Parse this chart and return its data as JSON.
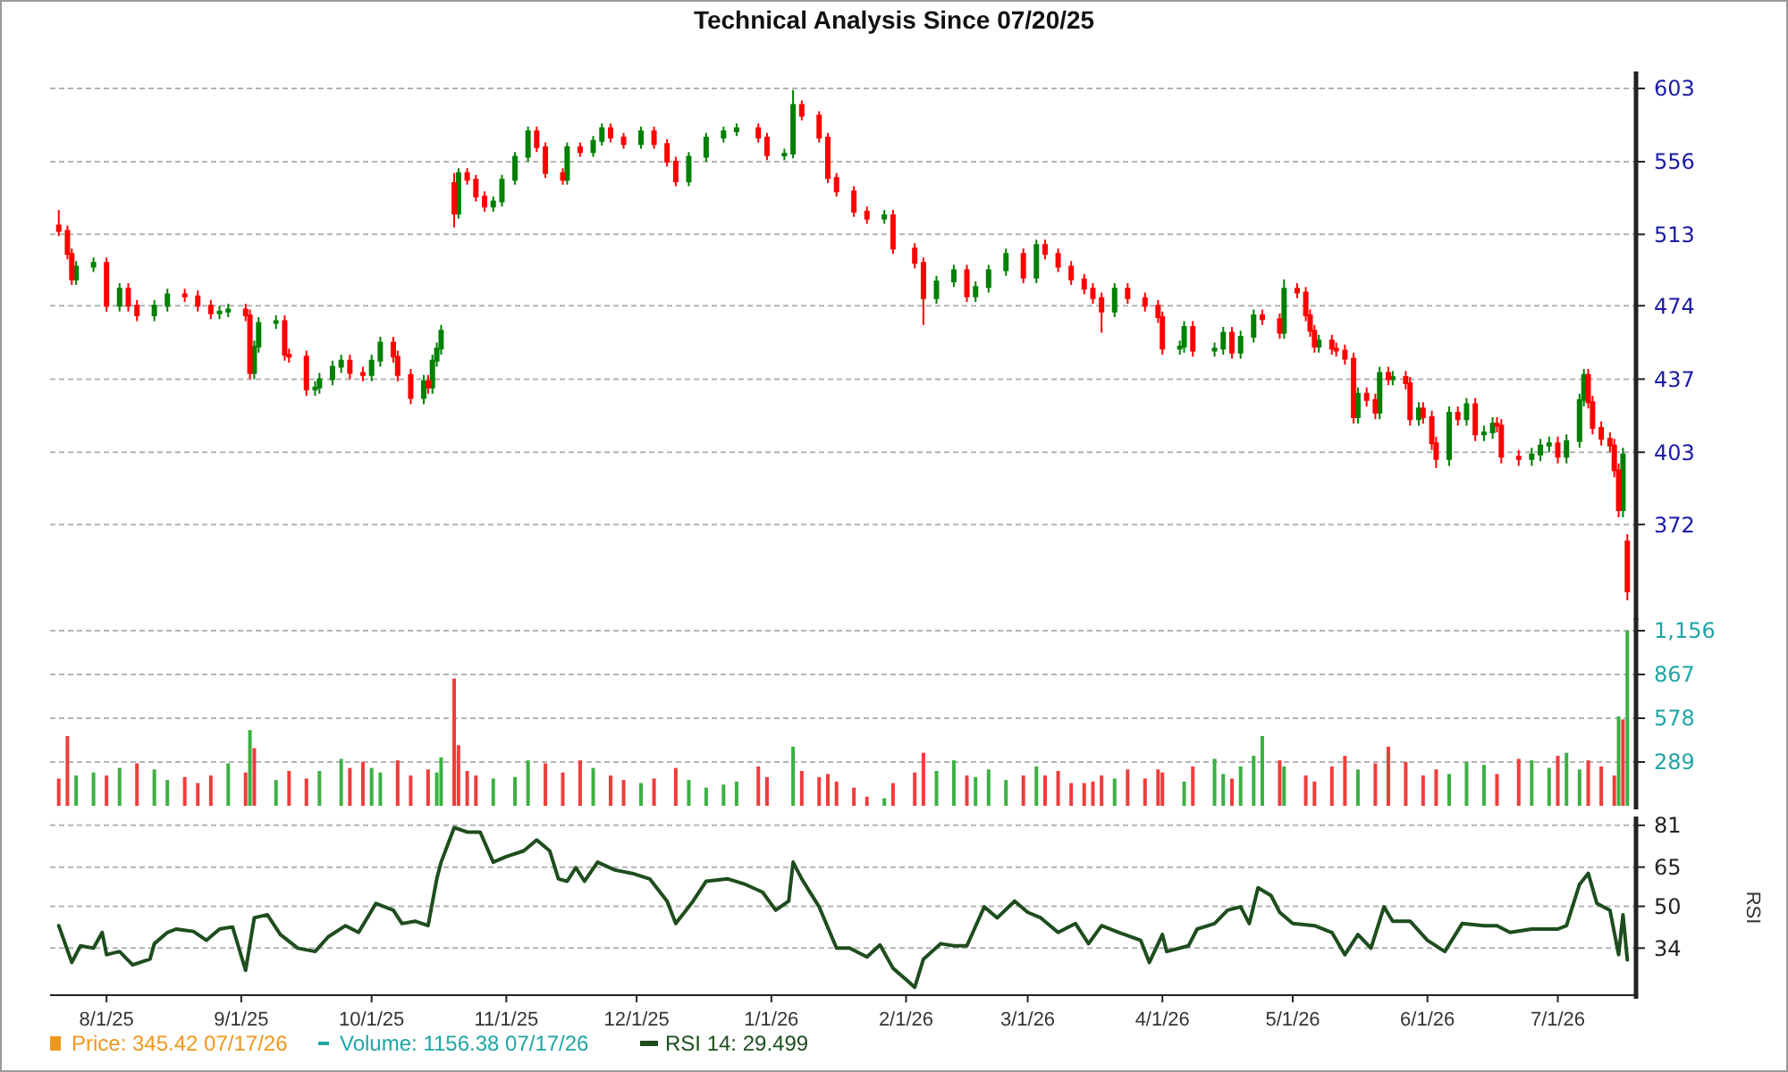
{
  "chart_data": [
    {
      "type": "candlestick",
      "title": "Technical Analysis Since 07/20/25",
      "log": true,
      "grid": "y",
      "tick_labels": "y",
      "legend": false,
      "xlim": [
        "2025-07-19",
        "2026-07-19"
      ],
      "ylim": [
        336,
        612
      ],
      "yticks": [
        372,
        403,
        437,
        474,
        513,
        556,
        603
      ],
      "annotations": [
        "Price: 345.42 07/17/26"
      ],
      "series": [
        {
          "color": "#008000",
          "x": [
            "2025-07-25",
            "2025-07-29",
            "2025-08-04",
            "2025-08-12",
            "2025-08-15",
            "2025-08-27",
            "2025-08-29",
            "2025-09-04",
            "2025-09-05",
            "2025-09-09",
            "2025-09-18",
            "2025-09-19",
            "2025-09-22",
            "2025-09-24",
            "2025-10-01",
            "2025-10-03",
            "2025-10-13",
            "2025-10-15",
            "2025-10-16",
            "2025-10-17",
            "2025-10-21",
            "2025-10-29",
            "2025-10-31",
            "2025-11-03",
            "2025-11-06",
            "2025-11-15",
            "2025-11-21",
            "2025-11-23",
            "2025-12-02",
            "2025-12-13",
            "2025-12-17",
            "2025-12-21",
            "2025-12-24",
            "2026-01-04",
            "2026-01-06",
            "2026-01-27",
            "2026-02-08",
            "2026-02-12",
            "2026-02-17",
            "2026-02-20",
            "2026-02-24",
            "2026-03-03",
            "2026-03-21",
            "2026-04-05",
            "2026-04-06",
            "2026-04-13",
            "2026-04-15",
            "2026-04-19",
            "2026-04-22",
            "2026-04-29",
            "2026-05-07",
            "2026-05-16",
            "2026-05-21",
            "2026-05-24",
            "2026-05-30",
            "2026-06-06",
            "2026-06-10",
            "2026-06-14",
            "2026-06-16",
            "2026-06-25",
            "2026-06-27",
            "2026-06-29",
            "2026-07-03",
            "2026-07-06",
            "2026-07-07",
            "2026-07-16"
          ],
          "ohlc": [
            [
              488,
              498,
              485,
              495
            ],
            [
              495,
              500,
              492,
              497
            ],
            [
              474,
              486,
              471,
              483
            ],
            [
              469,
              477,
              466,
              474
            ],
            [
              474,
              483,
              471,
              480
            ],
            [
              470,
              474,
              467,
              471
            ],
            [
              471,
              475,
              468,
              472
            ],
            [
              440,
              456,
              437,
              453
            ],
            [
              453,
              468,
              450,
              465
            ],
            [
              465,
              469,
              462,
              466
            ],
            [
              432,
              436,
              429,
              433
            ],
            [
              433,
              440,
              430,
              437
            ],
            [
              437,
              446,
              434,
              443
            ],
            [
              443,
              449,
              440,
              446
            ],
            [
              439,
              449,
              436,
              446
            ],
            [
              446,
              458,
              443,
              455
            ],
            [
              428,
              439,
              425,
              436
            ],
            [
              433,
              449,
              430,
              446
            ],
            [
              446,
              455,
              443,
              452
            ],
            [
              452,
              464,
              449,
              461
            ],
            [
              525,
              552,
              522,
              549
            ],
            [
              529,
              535,
              526,
              532
            ],
            [
              532,
              548,
              529,
              545
            ],
            [
              545,
              562,
              542,
              559
            ],
            [
              559,
              578,
              556,
              575
            ],
            [
              545,
              568,
              542,
              565
            ],
            [
              562,
              572,
              559,
              569
            ],
            [
              569,
              580,
              566,
              577
            ],
            [
              567,
              578,
              564,
              575
            ],
            [
              544,
              562,
              541,
              559
            ],
            [
              559,
              574,
              556,
              571
            ],
            [
              571,
              578,
              568,
              575
            ],
            [
              575,
              580,
              572,
              577
            ],
            [
              560,
              564,
              557,
              561
            ],
            [
              561,
              602,
              558,
              592
            ],
            [
              522,
              527,
              519,
              524
            ],
            [
              478,
              490,
              475,
              487
            ],
            [
              487,
              496,
              484,
              493
            ],
            [
              479,
              487,
              476,
              484
            ],
            [
              484,
              496,
              481,
              493
            ],
            [
              493,
              505,
              490,
              502
            ],
            [
              489,
              510,
              486,
              507
            ],
            [
              471,
              486,
              468,
              483
            ],
            [
              452,
              456,
              449,
              453
            ],
            [
              453,
              466,
              450,
              463
            ],
            [
              451,
              455,
              448,
              452
            ],
            [
              452,
              463,
              449,
              460
            ],
            [
              450,
              461,
              447,
              458
            ],
            [
              458,
              472,
              455,
              469
            ],
            [
              460,
              488,
              457,
              483
            ],
            [
              453,
              459,
              450,
              456
            ],
            [
              419,
              433,
              416,
              430
            ],
            [
              421,
              443,
              418,
              440
            ],
            [
              437,
              441,
              434,
              438
            ],
            [
              418,
              426,
              415,
              423
            ],
            [
              400,
              424,
              397,
              421
            ],
            [
              418,
              428,
              415,
              425
            ],
            [
              411,
              415,
              408,
              412
            ],
            [
              412,
              419,
              409,
              416
            ],
            [
              400,
              405,
              397,
              402
            ],
            [
              402,
              409,
              399,
              406
            ],
            [
              406,
              410,
              403,
              407
            ],
            [
              401,
              411,
              398,
              408
            ],
            [
              408,
              430,
              405,
              427
            ],
            [
              427,
              442,
              424,
              439
            ],
            [
              378,
              405,
              375,
              402
            ]
          ]
        },
        {
          "color": "#ff0000",
          "x": [
            "2025-07-21",
            "2025-07-23",
            "2025-07-24",
            "2025-08-01",
            "2025-08-06",
            "2025-08-08",
            "2025-08-19",
            "2025-08-22",
            "2025-08-25",
            "2025-09-02",
            "2025-09-03",
            "2025-09-11",
            "2025-09-12",
            "2025-09-16",
            "2025-09-26",
            "2025-09-29",
            "2025-10-06",
            "2025-10-07",
            "2025-10-10",
            "2025-10-14",
            "2025-10-20",
            "2025-10-23",
            "2025-10-25",
            "2025-10-27",
            "2025-11-08",
            "2025-11-10",
            "2025-11-14",
            "2025-11-18",
            "2025-11-25",
            "2025-11-28",
            "2025-12-05",
            "2025-12-08",
            "2025-12-10",
            "2025-12-29",
            "2025-12-31",
            "2026-01-08",
            "2026-01-12",
            "2026-01-14",
            "2026-01-16",
            "2026-01-20",
            "2026-01-23",
            "2026-01-29",
            "2026-02-03",
            "2026-02-05",
            "2026-02-15",
            "2026-02-28",
            "2026-03-05",
            "2026-03-08",
            "2026-03-11",
            "2026-03-14",
            "2026-03-16",
            "2026-03-18",
            "2026-03-24",
            "2026-03-28",
            "2026-03-31",
            "2026-04-01",
            "2026-04-08",
            "2026-04-17",
            "2026-04-24",
            "2026-04-28",
            "2026-05-02",
            "2026-05-04",
            "2026-05-05",
            "2026-05-06",
            "2026-05-10",
            "2026-05-11",
            "2026-05-13",
            "2026-05-15",
            "2026-05-18",
            "2026-05-20",
            "2026-05-23",
            "2026-05-27",
            "2026-05-28",
            "2026-05-31",
            "2026-06-02",
            "2026-06-03",
            "2026-06-08",
            "2026-06-12",
            "2026-06-17",
            "2026-06-18",
            "2026-06-22",
            "2026-07-01",
            "2026-07-08",
            "2026-07-09",
            "2026-07-11",
            "2026-07-13",
            "2026-07-14",
            "2026-07-15",
            "2026-07-17"
          ],
          "ohlc": [
            [
              518,
              527,
              512,
              515
            ],
            [
              515,
              518,
              499,
              502
            ],
            [
              502,
              505,
              485,
              488
            ],
            [
              497,
              500,
              471,
              474
            ],
            [
              483,
              486,
              471,
              474
            ],
            [
              474,
              477,
              466,
              469
            ],
            [
              480,
              483,
              476,
              479
            ],
            [
              479,
              482,
              471,
              474
            ],
            [
              474,
              477,
              467,
              470
            ],
            [
              472,
              475,
              466,
              469
            ],
            [
              469,
              472,
              437,
              440
            ],
            [
              466,
              469,
              446,
              449
            ],
            [
              449,
              452,
              445,
              448
            ],
            [
              448,
              451,
              429,
              432
            ],
            [
              446,
              449,
              437,
              440
            ],
            [
              440,
              443,
              436,
              439
            ],
            [
              455,
              458,
              445,
              448
            ],
            [
              448,
              451,
              436,
              439
            ],
            [
              439,
              442,
              425,
              428
            ],
            [
              436,
              439,
              430,
              433
            ],
            [
              543,
              549,
              517,
              525
            ],
            [
              549,
              552,
              542,
              545
            ],
            [
              545,
              548,
              532,
              535
            ],
            [
              535,
              538,
              526,
              529
            ],
            [
              575,
              578,
              562,
              565
            ],
            [
              565,
              568,
              546,
              549
            ],
            [
              549,
              552,
              542,
              545
            ],
            [
              565,
              568,
              559,
              562
            ],
            [
              577,
              580,
              568,
              571
            ],
            [
              571,
              574,
              564,
              567
            ],
            [
              575,
              578,
              564,
              567
            ],
            [
              567,
              570,
              553,
              556
            ],
            [
              556,
              559,
              541,
              544
            ],
            [
              577,
              580,
              568,
              571
            ],
            [
              571,
              574,
              557,
              560
            ],
            [
              592,
              595,
              582,
              585
            ],
            [
              585,
              588,
              568,
              571
            ],
            [
              571,
              574,
              543,
              546
            ],
            [
              546,
              549,
              535,
              538
            ],
            [
              538,
              541,
              523,
              526
            ],
            [
              526,
              529,
              519,
              522
            ],
            [
              524,
              527,
              502,
              505
            ],
            [
              505,
              508,
              494,
              497
            ],
            [
              497,
              500,
              464,
              478
            ],
            [
              493,
              496,
              476,
              479
            ],
            [
              502,
              505,
              486,
              489
            ],
            [
              507,
              510,
              499,
              502
            ],
            [
              502,
              505,
              492,
              495
            ],
            [
              495,
              498,
              485,
              488
            ],
            [
              488,
              491,
              480,
              483
            ],
            [
              483,
              486,
              475,
              478
            ],
            [
              478,
              481,
              460,
              471
            ],
            [
              483,
              486,
              475,
              478
            ],
            [
              478,
              481,
              471,
              474
            ],
            [
              474,
              477,
              465,
              468
            ],
            [
              468,
              471,
              449,
              452
            ],
            [
              463,
              466,
              448,
              451
            ],
            [
              460,
              463,
              447,
              450
            ],
            [
              469,
              472,
              464,
              467
            ],
            [
              467,
              470,
              457,
              460
            ],
            [
              483,
              486,
              478,
              481
            ],
            [
              481,
              484,
              466,
              469
            ],
            [
              469,
              472,
              458,
              461
            ],
            [
              461,
              464,
              450,
              453
            ],
            [
              456,
              459,
              449,
              452
            ],
            [
              452,
              455,
              448,
              451
            ],
            [
              451,
              454,
              444,
              447
            ],
            [
              447,
              450,
              416,
              419
            ],
            [
              430,
              433,
              424,
              427
            ],
            [
              427,
              430,
              418,
              421
            ],
            [
              440,
              443,
              434,
              437
            ],
            [
              438,
              441,
              432,
              435
            ],
            [
              435,
              438,
              415,
              418
            ],
            [
              423,
              426,
              416,
              419
            ],
            [
              419,
              422,
              404,
              407
            ],
            [
              407,
              410,
              396,
              400
            ],
            [
              421,
              424,
              415,
              418
            ],
            [
              425,
              428,
              408,
              411
            ],
            [
              416,
              419,
              412,
              415
            ],
            [
              415,
              418,
              398,
              401
            ],
            [
              401,
              404,
              397,
              400
            ],
            [
              407,
              410,
              398,
              401
            ],
            [
              439,
              442,
              423,
              426
            ],
            [
              426,
              429,
              411,
              414
            ],
            [
              414,
              417,
              406,
              409
            ],
            [
              409,
              412,
              403,
              406
            ],
            [
              406,
              409,
              392,
              395
            ],
            [
              395,
              398,
              375,
              378
            ],
            [
              365,
              368,
              342,
              345.42
            ]
          ]
        }
      ]
    },
    {
      "type": "bar",
      "grid": "y",
      "tick_labels": "y",
      "legend": false,
      "xlim": [
        "2025-07-19",
        "2026-07-19"
      ],
      "ylim": [
        0,
        1215
      ],
      "yticks": [
        289,
        578,
        867,
        {
          "value": 1156,
          "label": "1,156"
        }
      ],
      "annotations": [
        "Volume: 1156.38 07/17/26"
      ],
      "x": [
        "2025-07-21",
        "2025-07-23",
        "2025-07-25",
        "2025-07-29",
        "2025-08-01",
        "2025-08-04",
        "2025-08-08",
        "2025-08-12",
        "2025-08-15",
        "2025-08-19",
        "2025-08-22",
        "2025-08-25",
        "2025-08-29",
        "2025-09-02",
        "2025-09-03",
        "2025-09-04",
        "2025-09-09",
        "2025-09-12",
        "2025-09-16",
        "2025-09-19",
        "2025-09-24",
        "2025-09-26",
        "2025-09-29",
        "2025-10-01",
        "2025-10-03",
        "2025-10-07",
        "2025-10-10",
        "2025-10-14",
        "2025-10-16",
        "2025-10-17",
        "2025-10-20",
        "2025-10-21",
        "2025-10-23",
        "2025-10-25",
        "2025-10-29",
        "2025-11-03",
        "2025-11-06",
        "2025-11-10",
        "2025-11-14",
        "2025-11-18",
        "2025-11-21",
        "2025-11-25",
        "2025-11-28",
        "2025-12-02",
        "2025-12-05",
        "2025-12-10",
        "2025-12-13",
        "2025-12-17",
        "2025-12-21",
        "2025-12-24",
        "2025-12-29",
        "2025-12-31",
        "2026-01-06",
        "2026-01-08",
        "2026-01-12",
        "2026-01-14",
        "2026-01-16",
        "2026-01-20",
        "2026-01-23",
        "2026-01-27",
        "2026-01-29",
        "2026-02-03",
        "2026-02-05",
        "2026-02-08",
        "2026-02-12",
        "2026-02-15",
        "2026-02-17",
        "2026-02-20",
        "2026-02-24",
        "2026-02-28",
        "2026-03-03",
        "2026-03-05",
        "2026-03-08",
        "2026-03-11",
        "2026-03-14",
        "2026-03-16",
        "2026-03-18",
        "2026-03-21",
        "2026-03-24",
        "2026-03-28",
        "2026-03-31",
        "2026-04-01",
        "2026-04-06",
        "2026-04-08",
        "2026-04-13",
        "2026-04-15",
        "2026-04-17",
        "2026-04-19",
        "2026-04-22",
        "2026-04-24",
        "2026-04-28",
        "2026-04-29",
        "2026-05-04",
        "2026-05-06",
        "2026-05-10",
        "2026-05-13",
        "2026-05-16",
        "2026-05-20",
        "2026-05-23",
        "2026-05-27",
        "2026-05-31",
        "2026-06-03",
        "2026-06-06",
        "2026-06-10",
        "2026-06-14",
        "2026-06-17",
        "2026-06-22",
        "2026-06-25",
        "2026-06-29",
        "2026-07-01",
        "2026-07-03",
        "2026-07-06",
        "2026-07-08",
        "2026-07-11",
        "2026-07-14",
        "2026-07-15",
        "2026-07-16",
        "2026-07-17"
      ],
      "values": [
        180,
        460,
        200,
        220,
        200,
        250,
        280,
        240,
        170,
        190,
        150,
        200,
        280,
        220,
        500,
        380,
        170,
        230,
        180,
        230,
        310,
        250,
        290,
        250,
        220,
        300,
        200,
        240,
        220,
        320,
        840,
        400,
        230,
        200,
        180,
        190,
        300,
        280,
        220,
        300,
        250,
        200,
        170,
        150,
        180,
        250,
        170,
        120,
        140,
        160,
        260,
        190,
        390,
        230,
        190,
        210,
        160,
        120,
        60,
        50,
        150,
        220,
        350,
        230,
        300,
        200,
        190,
        240,
        170,
        200,
        260,
        200,
        230,
        150,
        150,
        160,
        200,
        180,
        240,
        180,
        240,
        220,
        160,
        260,
        310,
        210,
        180,
        260,
        330,
        460,
        300,
        260,
        200,
        160,
        260,
        330,
        240,
        280,
        390,
        290,
        200,
        240,
        210,
        290,
        270,
        210,
        310,
        300,
        250,
        330,
        350,
        240,
        300,
        260,
        200,
        590,
        570,
        1156
      ],
      "colors": [
        "#f03c3c",
        "#f03c3c",
        "#3cb043",
        "#3cb043",
        "#f03c3c",
        "#3cb043",
        "#f03c3c",
        "#3cb043",
        "#3cb043",
        "#f03c3c",
        "#f03c3c",
        "#f03c3c",
        "#3cb043",
        "#f03c3c",
        "#3cb043",
        "#f03c3c",
        "#3cb043",
        "#f03c3c",
        "#f03c3c",
        "#3cb043",
        "#3cb043",
        "#f03c3c",
        "#f03c3c",
        "#3cb043",
        "#3cb043",
        "#f03c3c",
        "#f03c3c",
        "#f03c3c",
        "#3cb043",
        "#3cb043",
        "#f03c3c",
        "#f03c3c",
        "#f03c3c",
        "#f03c3c",
        "#3cb043",
        "#3cb043",
        "#3cb043",
        "#f03c3c",
        "#f03c3c",
        "#f03c3c",
        "#3cb043",
        "#f03c3c",
        "#f03c3c",
        "#3cb043",
        "#f03c3c",
        "#f03c3c",
        "#3cb043",
        "#3cb043",
        "#3cb043",
        "#3cb043",
        "#f03c3c",
        "#f03c3c",
        "#3cb043",
        "#f03c3c",
        "#f03c3c",
        "#f03c3c",
        "#f03c3c",
        "#f03c3c",
        "#f03c3c",
        "#3cb043",
        "#f03c3c",
        "#f03c3c",
        "#f03c3c",
        "#3cb043",
        "#3cb043",
        "#f03c3c",
        "#3cb043",
        "#3cb043",
        "#3cb043",
        "#f03c3c",
        "#3cb043",
        "#f03c3c",
        "#f03c3c",
        "#f03c3c",
        "#f03c3c",
        "#f03c3c",
        "#f03c3c",
        "#3cb043",
        "#f03c3c",
        "#f03c3c",
        "#f03c3c",
        "#f03c3c",
        "#3cb043",
        "#f03c3c",
        "#3cb043",
        "#3cb043",
        "#f03c3c",
        "#3cb043",
        "#3cb043",
        "#3cb043",
        "#f03c3c",
        "#3cb043",
        "#f03c3c",
        "#f03c3c",
        "#f03c3c",
        "#f03c3c",
        "#3cb043",
        "#f03c3c",
        "#f03c3c",
        "#f03c3c",
        "#f03c3c",
        "#f03c3c",
        "#3cb043",
        "#3cb043",
        "#3cb043",
        "#f03c3c",
        "#f03c3c",
        "#3cb043",
        "#3cb043",
        "#f03c3c",
        "#3cb043",
        "#3cb043",
        "#f03c3c",
        "#f03c3c",
        "#f03c3c",
        "#3cb043",
        "#f03c3c",
        "#3cb043"
      ]
    },
    {
      "type": "line",
      "ylabel": "RSI",
      "grid": "y",
      "legend": "bottom left",
      "xlim": [
        "2025-07-19",
        "2026-07-19"
      ],
      "xticks": [
        {
          "value": "2025-08-01",
          "label": "8/1/25"
        },
        {
          "value": "2025-09-01",
          "label": "9/1/25"
        },
        {
          "value": "2025-10-01",
          "label": "10/1/25"
        },
        {
          "value": "2025-11-01",
          "label": "11/1/25"
        },
        {
          "value": "2025-12-01",
          "label": "12/1/25"
        },
        {
          "value": "2026-01-01",
          "label": "1/1/26"
        },
        {
          "value": "2026-02-01",
          "label": "2/1/26"
        },
        {
          "value": "2026-03-01",
          "label": "3/1/26"
        },
        {
          "value": "2026-04-01",
          "label": "4/1/26"
        },
        {
          "value": "2026-05-01",
          "label": "5/1/26"
        },
        {
          "value": "2026-06-01",
          "label": "6/1/26"
        },
        {
          "value": "2026-07-01",
          "label": "7/1/26"
        }
      ],
      "ylim": [
        16,
        83
      ],
      "yticks": [
        34,
        50,
        65,
        81
      ],
      "x": [
        "2025-07-21",
        "2025-07-24",
        "2025-07-26",
        "2025-07-29",
        "2025-07-31",
        "2025-08-01",
        "2025-08-04",
        "2025-08-07",
        "2025-08-11",
        "2025-08-12",
        "2025-08-15",
        "2025-08-17",
        "2025-08-21",
        "2025-08-24",
        "2025-08-27",
        "2025-08-30",
        "2025-09-02",
        "2025-09-04",
        "2025-09-07",
        "2025-09-10",
        "2025-09-14",
        "2025-09-18",
        "2025-09-21",
        "2025-09-25",
        "2025-09-28",
        "2025-10-02",
        "2025-10-06",
        "2025-10-08",
        "2025-10-11",
        "2025-10-14",
        "2025-10-16",
        "2025-10-17",
        "2025-10-20",
        "2025-10-23",
        "2025-10-26",
        "2025-10-29",
        "2025-11-01",
        "2025-11-05",
        "2025-11-08",
        "2025-11-11",
        "2025-11-13",
        "2025-11-15",
        "2025-11-17",
        "2025-11-19",
        "2025-11-22",
        "2025-11-26",
        "2025-11-30",
        "2025-12-04",
        "2025-12-08",
        "2025-12-10",
        "2025-12-14",
        "2025-12-17",
        "2025-12-22",
        "2025-12-26",
        "2025-12-30",
        "2026-01-02",
        "2026-01-05",
        "2026-01-06",
        "2026-01-08",
        "2026-01-12",
        "2026-01-16",
        "2026-01-19",
        "2026-01-23",
        "2026-01-26",
        "2026-01-29",
        "2026-02-01",
        "2026-02-03",
        "2026-02-05",
        "2026-02-09",
        "2026-02-12",
        "2026-02-15",
        "2026-02-19",
        "2026-02-22",
        "2026-02-26",
        "2026-03-01",
        "2026-03-04",
        "2026-03-08",
        "2026-03-12",
        "2026-03-15",
        "2026-03-18",
        "2026-03-22",
        "2026-03-27",
        "2026-03-29",
        "2026-04-01",
        "2026-04-02",
        "2026-04-07",
        "2026-04-09",
        "2026-04-13",
        "2026-04-16",
        "2026-04-19",
        "2026-04-21",
        "2026-04-23",
        "2026-04-26",
        "2026-04-28",
        "2026-05-01",
        "2026-05-06",
        "2026-05-10",
        "2026-05-13",
        "2026-05-16",
        "2026-05-19",
        "2026-05-22",
        "2026-05-24",
        "2026-05-28",
        "2026-06-01",
        "2026-06-05",
        "2026-06-09",
        "2026-06-14",
        "2026-06-17",
        "2026-06-20",
        "2026-06-25",
        "2026-07-01",
        "2026-07-03",
        "2026-07-06",
        "2026-07-08",
        "2026-07-10",
        "2026-07-13",
        "2026-07-15",
        "2026-07-16",
        "2026-07-17"
      ],
      "series": [
        {
          "name": "RSI 14: 29.499",
          "color": "#1e4d1e",
          "values": [
            42.6,
            28.5,
            34.9,
            34,
            40,
            31.5,
            32.7,
            27.6,
            29.8,
            35.7,
            40,
            41.3,
            40.4,
            37,
            41.3,
            42.1,
            25.5,
            45.6,
            46.8,
            39.2,
            34,
            32.7,
            38.3,
            42.6,
            40,
            51.1,
            48.5,
            43.4,
            44.3,
            42.6,
            60.5,
            66.9,
            80.1,
            78.4,
            78.4,
            66.9,
            69,
            71.2,
            75.4,
            71.2,
            60.5,
            59.6,
            64.8,
            59.6,
            66.9,
            63.9,
            62.6,
            60.5,
            52,
            43.4,
            52,
            59.6,
            60.5,
            58.4,
            55.4,
            48.5,
            52,
            66.9,
            60.5,
            49.8,
            34,
            34,
            30.6,
            35.2,
            26.3,
            22,
            19,
            29.8,
            35.7,
            34.9,
            34.9,
            49.8,
            45.6,
            52,
            47.7,
            45.6,
            40,
            43.4,
            35.7,
            42.6,
            40,
            37,
            28.5,
            39.2,
            32.7,
            34.9,
            41.3,
            43.4,
            48.5,
            49.8,
            43.4,
            57.1,
            54.1,
            47.7,
            43.4,
            42.6,
            40,
            31.5,
            39.2,
            34,
            49.8,
            44.3,
            44.3,
            37,
            32.7,
            43.4,
            42.6,
            42.6,
            40,
            41.3,
            41.3,
            42.6,
            58.4,
            62.6,
            51.1,
            48.5,
            31.5,
            46.8,
            29.499
          ]
        }
      ]
    }
  ]
}
